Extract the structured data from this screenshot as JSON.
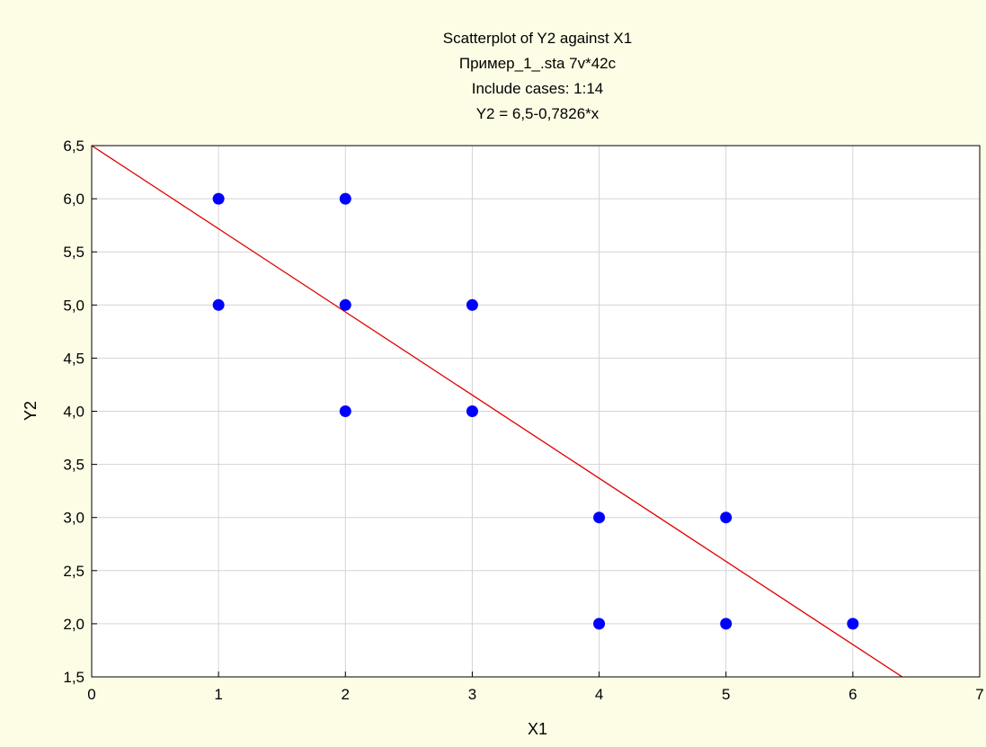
{
  "chart_data": {
    "type": "scatter",
    "title_lines": [
      "Scatterplot of Y2 against X1",
      "Пример_1_.sta 7v*42c",
      "Include cases: 1:14",
      "Y2 = 6,5-0,7826*x"
    ],
    "xlabel": "X1",
    "ylabel": "Y2",
    "xlim": [
      0,
      7
    ],
    "ylim": [
      1.5,
      6.5
    ],
    "x_ticks": [
      "0",
      "1",
      "2",
      "3",
      "4",
      "5",
      "6",
      "7"
    ],
    "y_ticks": [
      "1,5",
      "2,0",
      "2,5",
      "3,0",
      "3,5",
      "4,0",
      "4,5",
      "5,0",
      "5,5",
      "6,0",
      "6,5"
    ],
    "grid": true,
    "points": [
      {
        "x": 1,
        "y": 6
      },
      {
        "x": 1,
        "y": 5
      },
      {
        "x": 2,
        "y": 6
      },
      {
        "x": 2,
        "y": 5
      },
      {
        "x": 2,
        "y": 4
      },
      {
        "x": 3,
        "y": 5
      },
      {
        "x": 3,
        "y": 4
      },
      {
        "x": 4,
        "y": 3
      },
      {
        "x": 4,
        "y": 2
      },
      {
        "x": 5,
        "y": 3
      },
      {
        "x": 5,
        "y": 2
      },
      {
        "x": 6,
        "y": 2
      }
    ],
    "fit_line": {
      "intercept": 6.5,
      "slope": -0.7826
    },
    "colors": {
      "points": "#0000ff",
      "fit_line": "#e00000",
      "plot_background": "#ffffff",
      "page_background": "#fdfde6",
      "grid": "#d4d4d4"
    }
  }
}
